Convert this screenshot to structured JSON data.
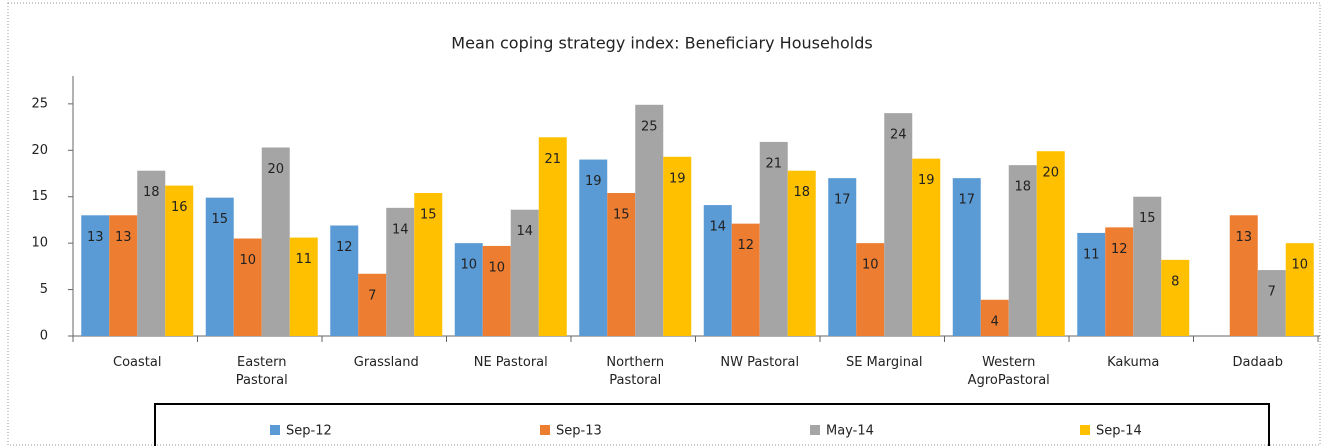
{
  "chart_data": {
    "type": "bar",
    "title": "Mean coping strategy index:  Beneficiary Households",
    "categories": [
      "Coastal",
      "Eastern\nPastoral",
      "Grassland",
      "NE Pastoral",
      "Northern\nPastoral",
      "NW Pastoral",
      "SE Marginal",
      "Western\nAgroPastoral",
      "Kakuma",
      "Dadaab"
    ],
    "series": [
      {
        "name": "Sep-12",
        "color": "#5b9bd5",
        "values": [
          13.0,
          14.9,
          11.9,
          10.0,
          19.0,
          14.1,
          17.0,
          17.0,
          11.1,
          null
        ],
        "value_labels": [
          "13",
          "15",
          "12",
          "10",
          "19",
          "14",
          "17",
          "17",
          "11",
          null
        ]
      },
      {
        "name": "Sep-13",
        "color": "#ed7d31",
        "values": [
          13.0,
          10.5,
          6.7,
          9.7,
          15.4,
          12.1,
          10.0,
          3.9,
          11.7,
          13.0
        ],
        "value_labels": [
          "13",
          "10",
          "7",
          "10",
          "15",
          "12",
          "10",
          "4",
          "12",
          "13"
        ]
      },
      {
        "name": "May-14",
        "color": "#a5a5a5",
        "values": [
          17.8,
          20.3,
          13.8,
          13.6,
          24.9,
          20.9,
          24.0,
          18.4,
          15.0,
          7.1
        ],
        "value_labels": [
          "18",
          "20",
          "14",
          "14",
          "25",
          "21",
          "24",
          "18",
          "15",
          "7"
        ]
      },
      {
        "name": "Sep-14",
        "color": "#ffc000",
        "values": [
          16.2,
          10.6,
          15.4,
          21.4,
          19.3,
          17.8,
          19.1,
          19.9,
          8.2,
          10.0
        ],
        "value_labels": [
          "16",
          "11",
          "15",
          "21",
          "19",
          "18",
          "19",
          "20",
          "8",
          "10"
        ]
      }
    ],
    "ylim": [
      0,
      28
    ],
    "yticks": [
      0,
      5,
      10,
      15,
      20,
      25
    ],
    "legend": "bottom"
  }
}
